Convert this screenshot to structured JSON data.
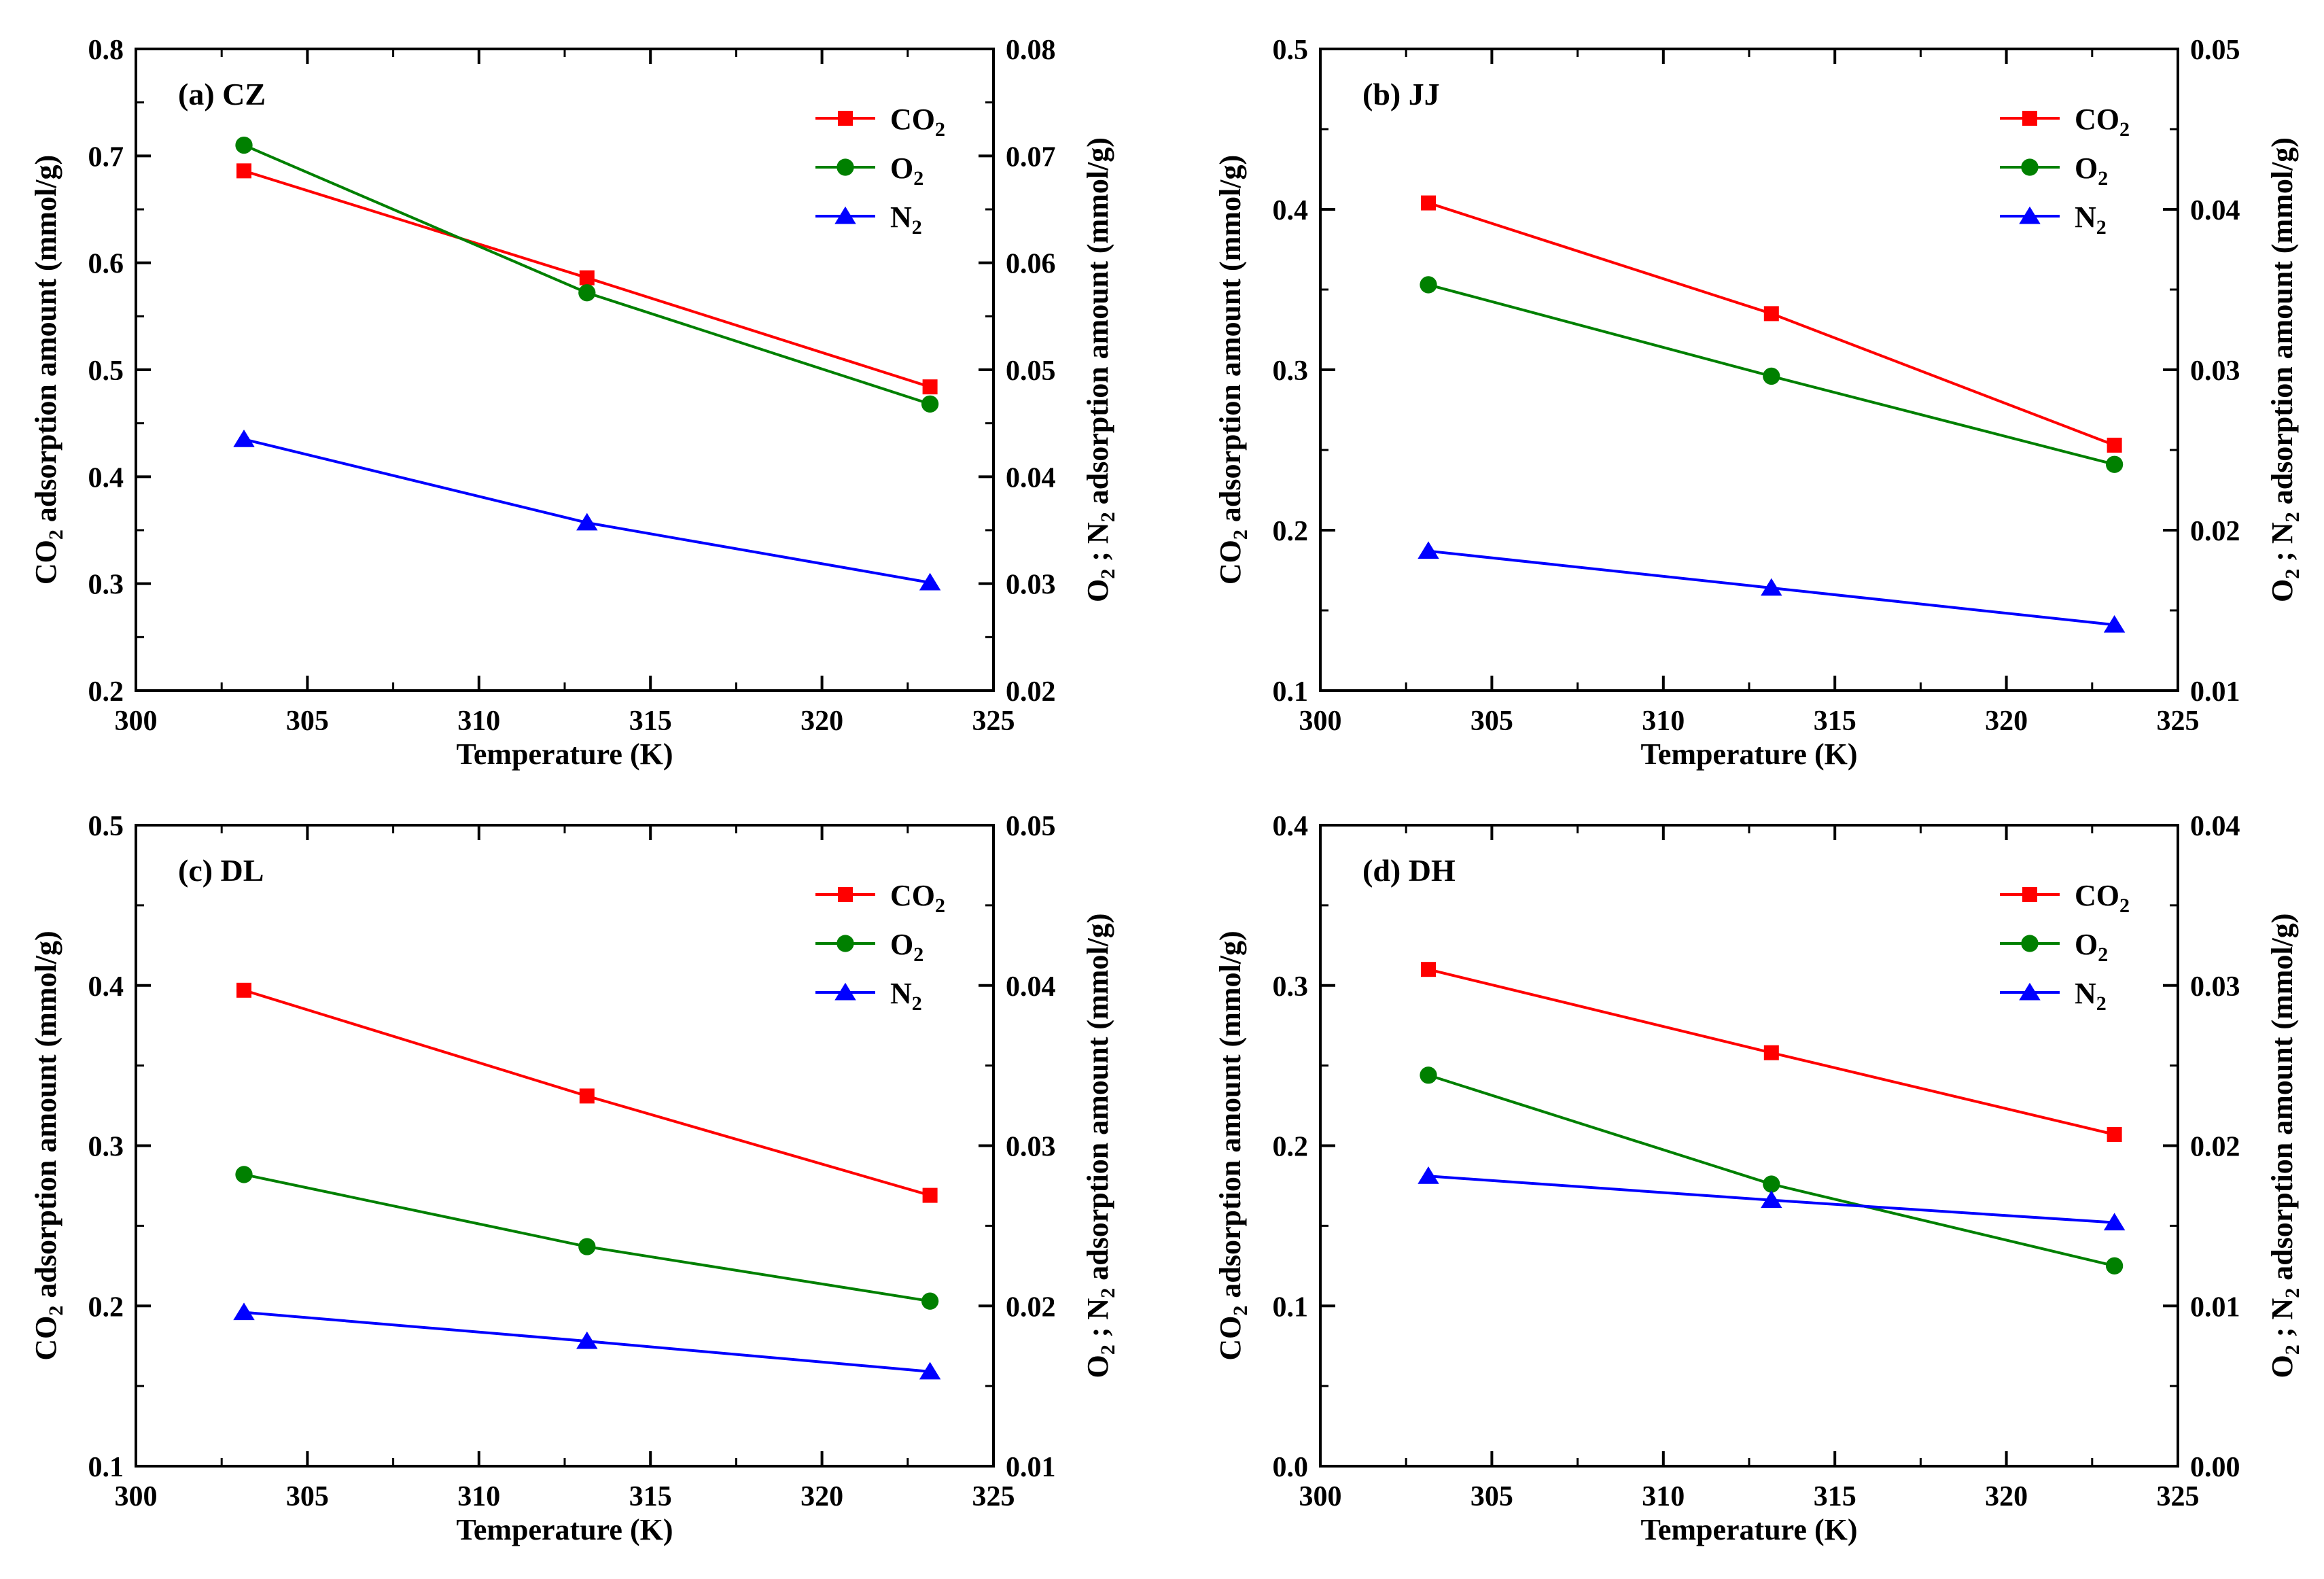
{
  "chart_data": [
    {
      "type": "line",
      "panel_label": "(a) CZ",
      "x": [
        303.15,
        313.15,
        323.15
      ],
      "xlim": [
        300,
        325
      ],
      "xticks": [
        "300",
        "305",
        "310",
        "315",
        "320",
        "325"
      ],
      "xlabel": "Temperature (K)",
      "ylim": [
        0.2,
        0.8
      ],
      "yticks": [
        "0.2",
        "0.3",
        "0.4",
        "0.5",
        "0.6",
        "0.7",
        "0.8"
      ],
      "ylabel_prefix": "CO",
      "ylabel_sub": "2",
      "ylabel_suffix": " adsorption amount (mmol/g)",
      "y2lim": [
        0.02,
        0.08
      ],
      "y2ticks": [
        "0.02",
        "0.03",
        "0.04",
        "0.05",
        "0.06",
        "0.07",
        "0.08"
      ],
      "y2label_o": "O",
      "y2label_sub1": "2",
      "y2label_mid": " ; N",
      "y2label_sub2": "2",
      "y2label_suffix": " adsorption amount (mmol/g)",
      "series": [
        {
          "name": "CO",
          "sub": "2",
          "axis": "left",
          "color": "#ff0000",
          "marker": "square",
          "values": [
            0.686,
            0.586,
            0.484
          ]
        },
        {
          "name": "O",
          "sub": "2",
          "axis": "right",
          "color": "#008000",
          "marker": "circle",
          "values": [
            0.071,
            0.0572,
            0.0468
          ]
        },
        {
          "name": "N",
          "sub": "2",
          "axis": "right",
          "color": "#0000ff",
          "marker": "triangle",
          "values": [
            0.0435,
            0.0357,
            0.0301
          ]
        }
      ]
    },
    {
      "type": "line",
      "panel_label": "(b) JJ",
      "x": [
        303.15,
        313.15,
        323.15
      ],
      "xlim": [
        300,
        325
      ],
      "xticks": [
        "300",
        "305",
        "310",
        "315",
        "320",
        "325"
      ],
      "xlabel": "Temperature (K)",
      "ylim": [
        0.1,
        0.5
      ],
      "yticks": [
        "0.1",
        "0.2",
        "0.3",
        "0.4",
        "0.5"
      ],
      "ylabel_prefix": "CO",
      "ylabel_sub": "2",
      "ylabel_suffix": " adsorption amount (mmol/g)",
      "y2lim": [
        0.01,
        0.05
      ],
      "y2ticks": [
        "0.01",
        "0.02",
        "0.03",
        "0.04",
        "0.05"
      ],
      "y2label_o": "O",
      "y2label_sub1": "2",
      "y2label_mid": " ; N",
      "y2label_sub2": "2",
      "y2label_suffix": " adsorption amount (mmol/g)",
      "series": [
        {
          "name": "CO",
          "sub": "2",
          "axis": "left",
          "color": "#ff0000",
          "marker": "square",
          "values": [
            0.404,
            0.335,
            0.253
          ]
        },
        {
          "name": "O",
          "sub": "2",
          "axis": "right",
          "color": "#008000",
          "marker": "circle",
          "values": [
            0.0353,
            0.0296,
            0.0241
          ]
        },
        {
          "name": "N",
          "sub": "2",
          "axis": "right",
          "color": "#0000ff",
          "marker": "triangle",
          "values": [
            0.0187,
            0.0164,
            0.0141
          ]
        }
      ]
    },
    {
      "type": "line",
      "panel_label": "(c) DL",
      "x": [
        303.15,
        313.15,
        323.15
      ],
      "xlim": [
        300,
        325
      ],
      "xticks": [
        "300",
        "305",
        "310",
        "315",
        "320",
        "325"
      ],
      "xlabel": "Temperature (K)",
      "ylim": [
        0.1,
        0.5
      ],
      "yticks": [
        "0.1",
        "0.2",
        "0.3",
        "0.4",
        "0.5"
      ],
      "ylabel_prefix": "CO",
      "ylabel_sub": "2",
      "ylabel_suffix": " adsorption amount (mmol/g)",
      "y2lim": [
        0.01,
        0.05
      ],
      "y2ticks": [
        "0.01",
        "0.02",
        "0.03",
        "0.04",
        "0.05"
      ],
      "y2label_o": "O",
      "y2label_sub1": "2",
      "y2label_mid": " ; N",
      "y2label_sub2": "2",
      "y2label_suffix": " adsorption amount (mmol/g)",
      "series": [
        {
          "name": "CO",
          "sub": "2",
          "axis": "left",
          "color": "#ff0000",
          "marker": "square",
          "values": [
            0.397,
            0.331,
            0.269
          ]
        },
        {
          "name": "O",
          "sub": "2",
          "axis": "right",
          "color": "#008000",
          "marker": "circle",
          "values": [
            0.0282,
            0.0237,
            0.0203
          ]
        },
        {
          "name": "N",
          "sub": "2",
          "axis": "right",
          "color": "#0000ff",
          "marker": "triangle",
          "values": [
            0.0196,
            0.0178,
            0.0159
          ]
        }
      ]
    },
    {
      "type": "line",
      "panel_label": "(d) DH",
      "x": [
        303.15,
        313.15,
        323.15
      ],
      "xlim": [
        300,
        325
      ],
      "xticks": [
        "300",
        "305",
        "310",
        "315",
        "320",
        "325"
      ],
      "xlabel": "Temperature (K)",
      "ylim": [
        0.0,
        0.4
      ],
      "yticks": [
        "0.0",
        "0.1",
        "0.2",
        "0.3",
        "0.4"
      ],
      "ylabel_prefix": "CO",
      "ylabel_sub": "2",
      "ylabel_suffix": " adsorption amount (mmol/g)",
      "y2lim": [
        0.0,
        0.04
      ],
      "y2ticks": [
        "0.00",
        "0.01",
        "0.02",
        "0.03",
        "0.04"
      ],
      "y2label_o": "O",
      "y2label_sub1": "2",
      "y2label_mid": " ; N",
      "y2label_sub2": "2",
      "y2label_suffix": " adsorption amount (mmol/g)",
      "series": [
        {
          "name": "CO",
          "sub": "2",
          "axis": "left",
          "color": "#ff0000",
          "marker": "square",
          "values": [
            0.31,
            0.258,
            0.207
          ]
        },
        {
          "name": "O",
          "sub": "2",
          "axis": "right",
          "color": "#008000",
          "marker": "circle",
          "values": [
            0.0244,
            0.0176,
            0.0125
          ]
        },
        {
          "name": "N",
          "sub": "2",
          "axis": "right",
          "color": "#0000ff",
          "marker": "triangle",
          "values": [
            0.0181,
            0.0166,
            0.0152
          ]
        }
      ]
    }
  ]
}
